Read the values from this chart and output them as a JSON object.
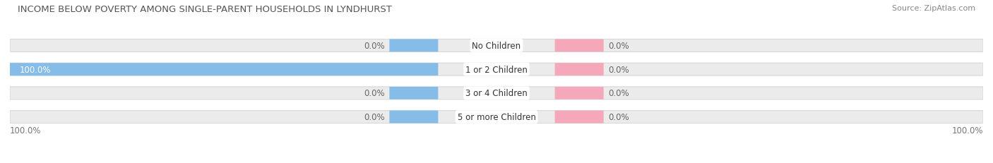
{
  "title": "INCOME BELOW POVERTY AMONG SINGLE-PARENT HOUSEHOLDS IN LYNDHURST",
  "source": "Source: ZipAtlas.com",
  "categories": [
    "No Children",
    "1 or 2 Children",
    "3 or 4 Children",
    "5 or more Children"
  ],
  "single_father": [
    0.0,
    100.0,
    0.0,
    0.0
  ],
  "single_mother": [
    0.0,
    0.0,
    0.0,
    0.0
  ],
  "father_color": "#85BCE8",
  "mother_color": "#F4A8BA",
  "bar_bg_color": "#EBEBEB",
  "bar_bg_edge_color": "#D8D8D8",
  "title_fontsize": 9.5,
  "label_fontsize": 8.5,
  "cat_fontsize": 8.5,
  "axis_fontsize": 8.5,
  "source_fontsize": 8,
  "background_color": "#FFFFFF",
  "bar_height": 0.52,
  "center_label_color": "#333333",
  "value_color_inside": "#FFFFFF",
  "value_color_outside": "#666666",
  "axis_label_color": "#777777",
  "title_color": "#555555",
  "source_color": "#888888",
  "min_bar_display": 5.0,
  "default_half_bar": 15.0
}
